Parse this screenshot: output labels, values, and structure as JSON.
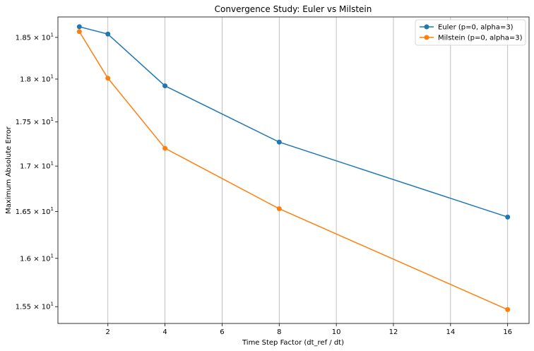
{
  "chart_data": {
    "type": "line",
    "title": "Convergence Study: Euler vs Milstein",
    "xlabel": "Time Step Factor (dt_ref / dt)",
    "ylabel": "Maximum Absolute Error",
    "x": [
      1,
      2,
      4,
      8,
      16
    ],
    "series": [
      {
        "name": "Euler (p=0, alpha=3)",
        "color": "#1f77b4",
        "values": [
          18.63,
          18.54,
          17.92,
          17.27,
          16.44
        ]
      },
      {
        "name": "Milstein (p=0, alpha=3)",
        "color": "#ff7f0e",
        "values": [
          18.57,
          18.01,
          17.2,
          16.53,
          15.47
        ]
      }
    ],
    "xlim": [
      0.25,
      16.75
    ],
    "ylim": [
      15.33,
      18.75
    ],
    "yscale": "log",
    "x_ticks": [
      {
        "value": 2,
        "label": "2"
      },
      {
        "value": 4,
        "label": "4"
      },
      {
        "value": 6,
        "label": "6"
      },
      {
        "value": 8,
        "label": "8"
      },
      {
        "value": 10,
        "label": "10"
      },
      {
        "value": 12,
        "label": "12"
      },
      {
        "value": 14,
        "label": "14"
      },
      {
        "value": 16,
        "label": "16"
      }
    ],
    "y_ticks": [
      {
        "value": 15.5,
        "mantissa": "1.55",
        "base": "10",
        "exp": "1"
      },
      {
        "value": 16.0,
        "mantissa": "1.6",
        "base": "10",
        "exp": "1"
      },
      {
        "value": 16.5,
        "mantissa": "1.65",
        "base": "10",
        "exp": "1"
      },
      {
        "value": 17.0,
        "mantissa": "1.7",
        "base": "10",
        "exp": "1"
      },
      {
        "value": 17.5,
        "mantissa": "1.75",
        "base": "10",
        "exp": "1"
      },
      {
        "value": 18.0,
        "mantissa": "1.8",
        "base": "10",
        "exp": "1"
      },
      {
        "value": 18.5,
        "mantissa": "1.85",
        "base": "10",
        "exp": "1"
      }
    ],
    "grid": "vertical",
    "legend_position": "top-right"
  }
}
